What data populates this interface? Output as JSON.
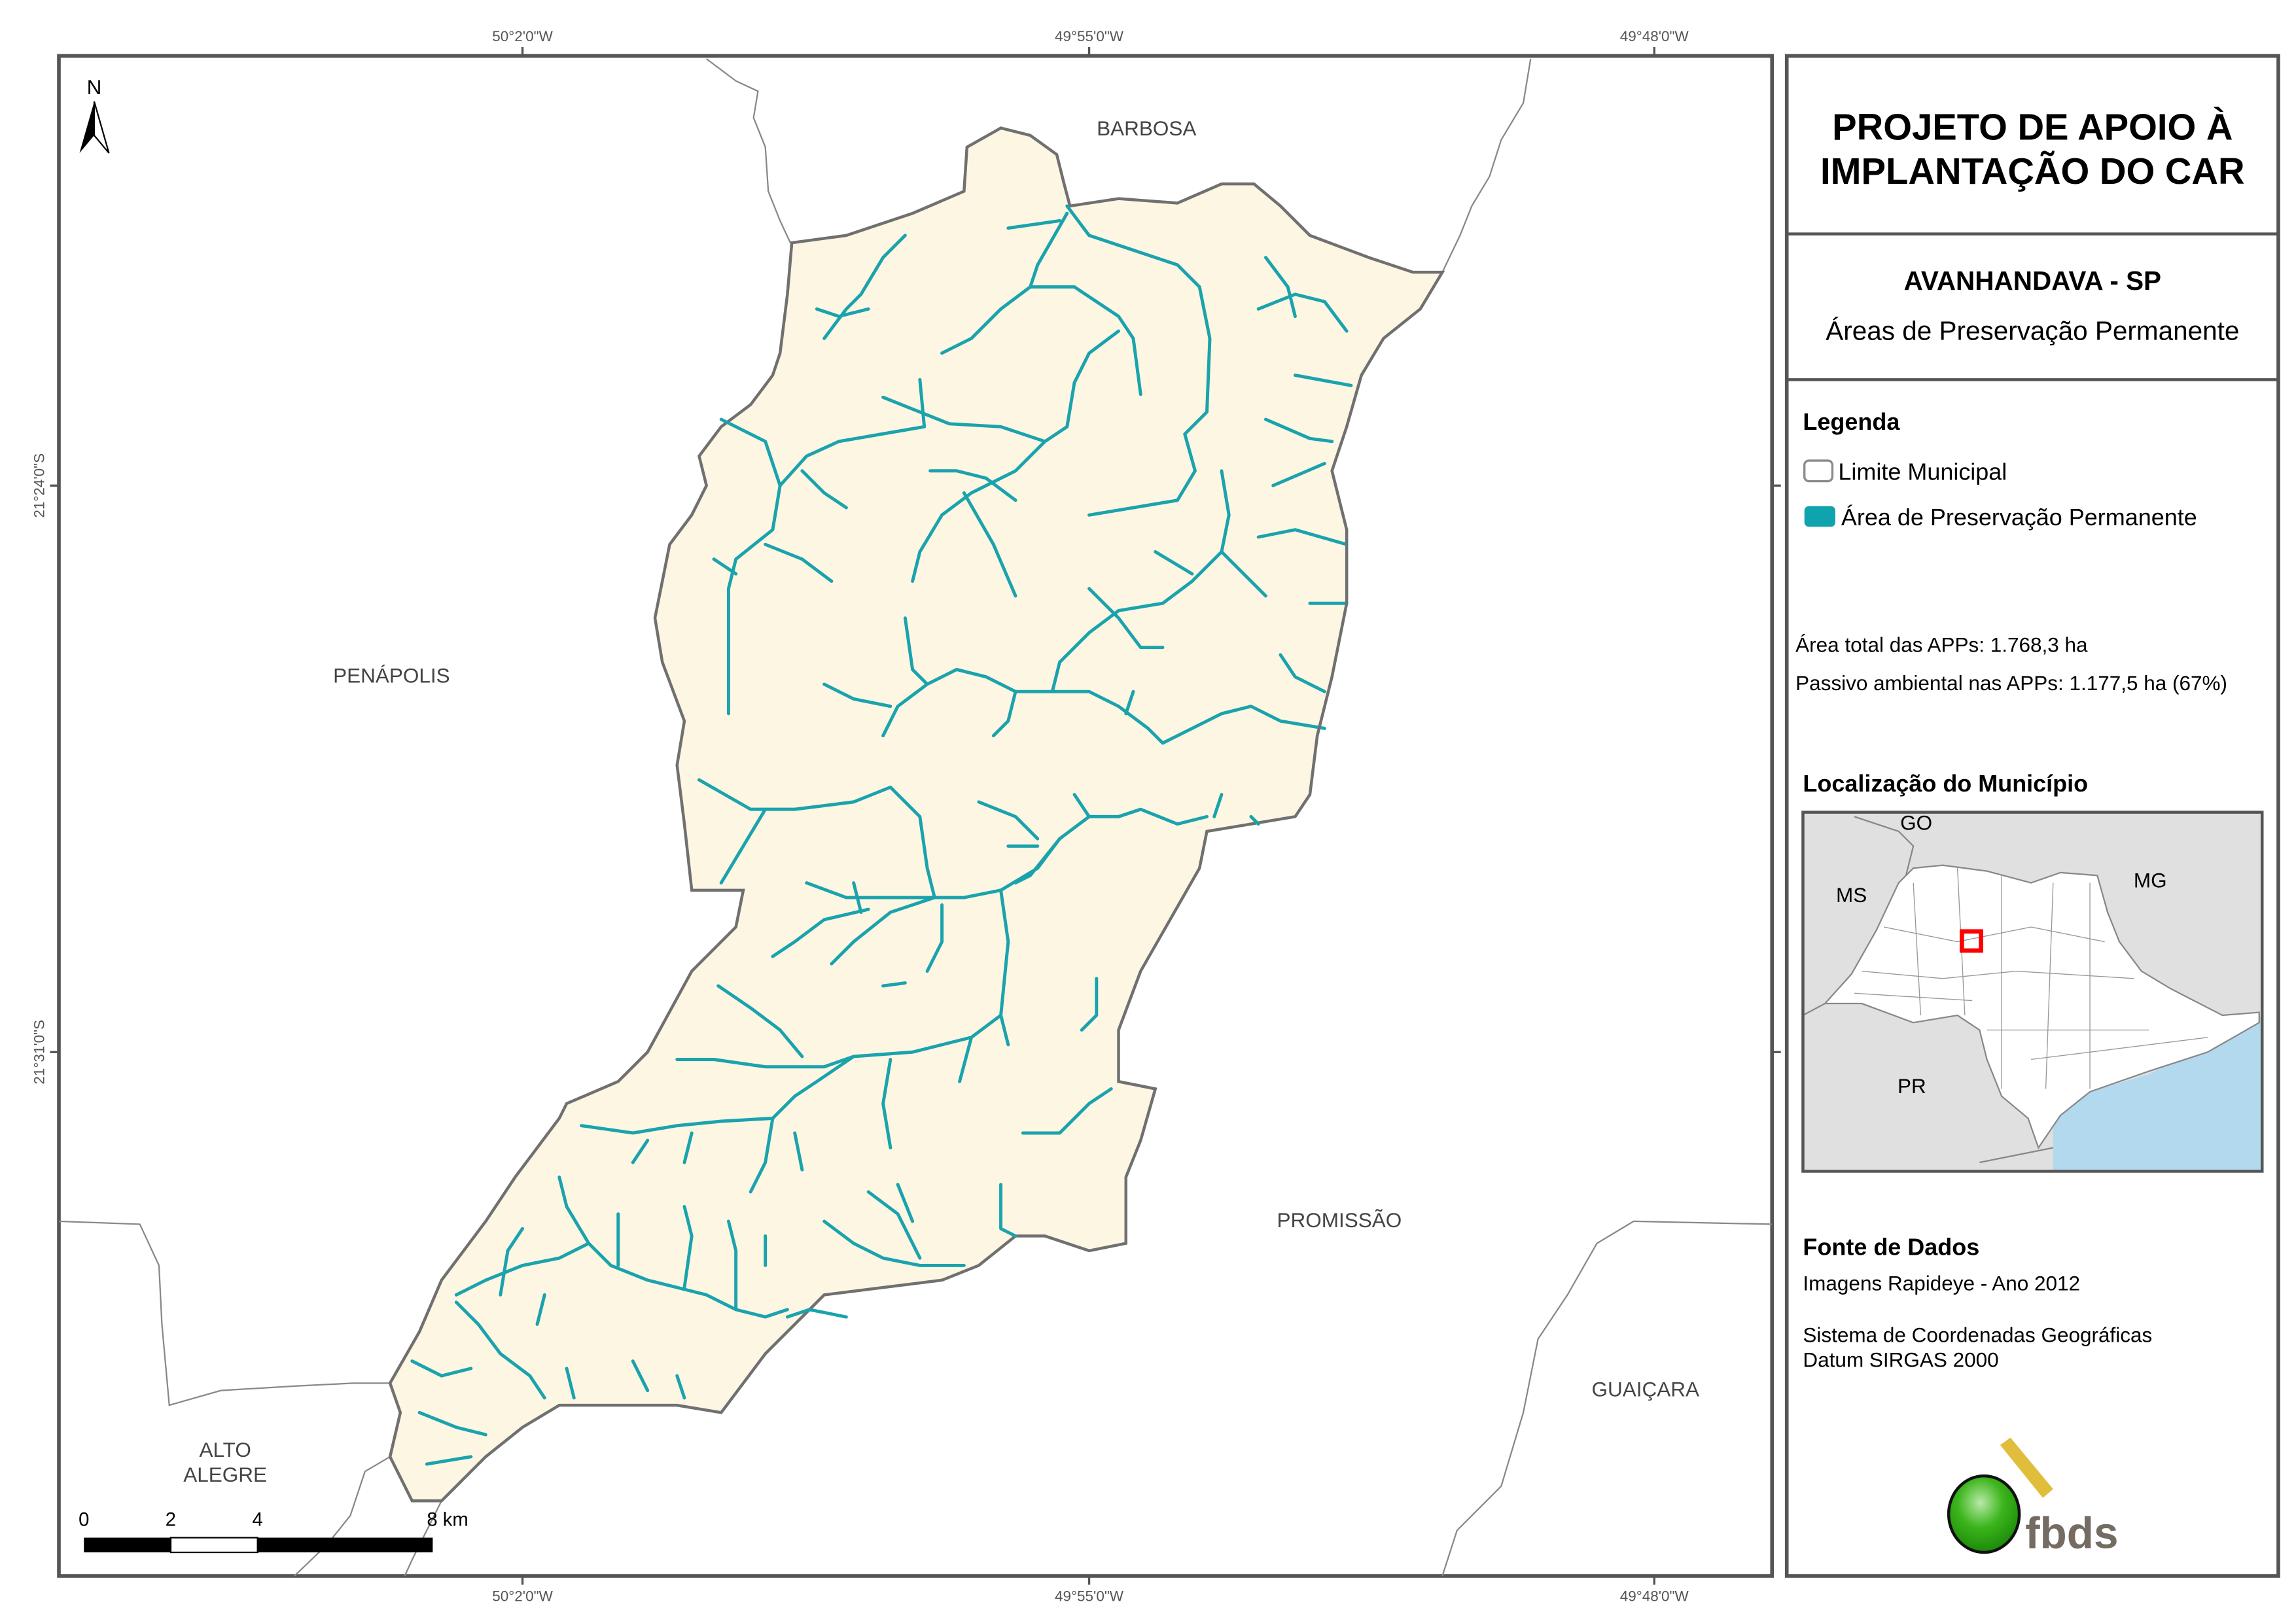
{
  "title": {
    "line1": "PROJETO DE APOIO À",
    "line2": "IMPLANTAÇÃO DO CAR"
  },
  "municipality": "AVANHANDAVA - SP",
  "subtitle": "Áreas de Preservação Permanente",
  "legend": {
    "heading": "Legenda",
    "items": [
      {
        "label": "Limite Municipal",
        "symbol": "outline",
        "color": "#8c8c8c"
      },
      {
        "label": "Área de Preservação Permanente",
        "symbol": "fill",
        "color": "#0fa3ad"
      }
    ]
  },
  "stats": {
    "total": "Área total das APPs: 1.768,3 ha",
    "passivo": "Passivo ambiental nas APPs: 1.177,5 ha (67%)"
  },
  "location": {
    "heading": "Localização do Município",
    "states": [
      "GO",
      "MS",
      "MG",
      "PR"
    ],
    "highlight_color": "#ff0000",
    "sea_color": "#b3d9ee"
  },
  "sources": {
    "heading": "Fonte de Dados",
    "line1": "Imagens Rapideye - Ano 2012",
    "line2": "Sistema de Coordenadas Geográficas",
    "line3": "Datum SIRGAS 2000"
  },
  "logo_text": "fbds",
  "map": {
    "north": "N",
    "lon_labels": [
      "50°2'0\"W",
      "49°55'0\"W",
      "49°48'0\"W"
    ],
    "lat_labels": [
      "21°24'0\"S",
      "21°31'0\"S"
    ],
    "neighbors": [
      "BARBOSA",
      "PENÁPOLIS",
      "PROMISSÃO",
      "GUAIÇARA",
      "ALTO",
      "ALEGRE"
    ],
    "scale": {
      "ticks": [
        "0",
        "2",
        "4",
        "8 km"
      ]
    },
    "municipality_fill": "#fdf6e3",
    "boundary_color": "#707070"
  }
}
